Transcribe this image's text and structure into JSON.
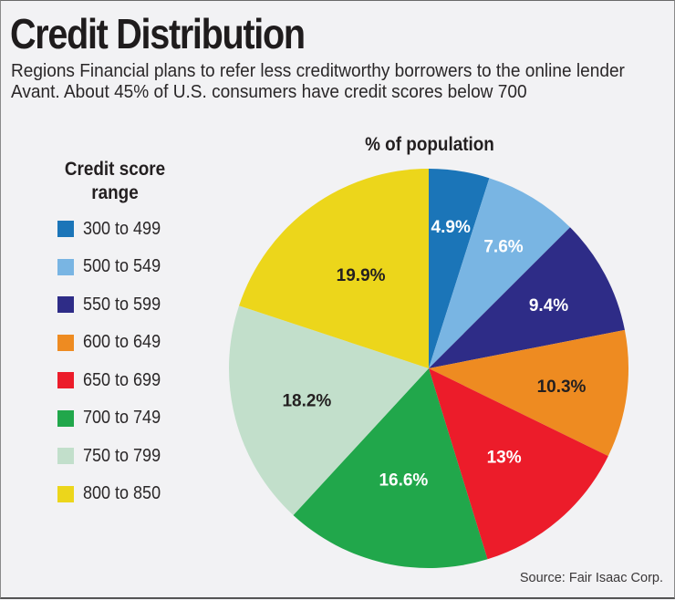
{
  "header": {
    "title": "Credit Distribution",
    "subtitle": "Regions Financial plans to refer less creditworthy borrowers to the online lender Avant. About 45% of U.S. consumers have credit scores below 700"
  },
  "legend": {
    "title_line1": "Credit score",
    "title_line2": "range",
    "items": [
      {
        "label": "300 to 499",
        "color": "#1b75b8"
      },
      {
        "label": "500 to 549",
        "color": "#79b5e3"
      },
      {
        "label": "550 to 599",
        "color": "#2e2c87"
      },
      {
        "label": "600 to 649",
        "color": "#ee8b21"
      },
      {
        "label": "650 to 699",
        "color": "#ec1c2a"
      },
      {
        "label": "700 to 749",
        "color": "#21a74b"
      },
      {
        "label": "750 to 799",
        "color": "#c2dfcb"
      },
      {
        "label": "800 to 850",
        "color": "#ecd61b"
      }
    ]
  },
  "chart_title": "% of population",
  "source": "Source: Fair Isaac Corp.",
  "chart_data": {
    "type": "pie",
    "title": "% of population",
    "legend_title": "Credit score range",
    "legend_position": "left",
    "start_angle": "12 o'clock, clockwise",
    "categories": [
      "300 to 499",
      "500 to 549",
      "550 to 599",
      "600 to 649",
      "650 to 699",
      "700 to 749",
      "750 to 799",
      "800 to 850"
    ],
    "values": [
      4.9,
      7.6,
      9.4,
      10.3,
      13,
      16.6,
      18.2,
      19.9
    ],
    "value_labels": [
      "4.9%",
      "7.6%",
      "9.4%",
      "10.3%",
      "13%",
      "16.6%",
      "18.2%",
      "19.9%"
    ],
    "label_colors": [
      "#ffffff",
      "#ffffff",
      "#ffffff",
      "#231f20",
      "#ffffff",
      "#ffffff",
      "#231f20",
      "#231f20"
    ],
    "colors": [
      "#1b75b8",
      "#79b5e3",
      "#2e2c87",
      "#ee8b21",
      "#ec1c2a",
      "#21a74b",
      "#c2dfcb",
      "#ecd61b"
    ],
    "unit": "%",
    "source": "Source: Fair Isaac Corp."
  }
}
